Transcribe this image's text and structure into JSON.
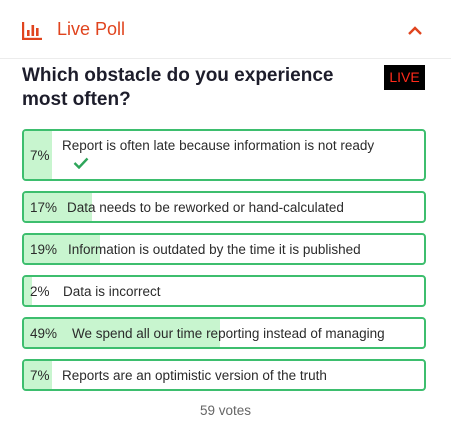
{
  "header": {
    "title": "Live Poll",
    "accent": "#e0441e"
  },
  "question": "Which obstacle do you experience most often?",
  "live_badge": "LIVE",
  "options": [
    {
      "percent": 7,
      "percent_label": "7%",
      "label": "Report is often late because information is not ready",
      "selected": true
    },
    {
      "percent": 17,
      "percent_label": "17%",
      "label": "Data needs to be reworked or hand-calculated",
      "selected": false
    },
    {
      "percent": 19,
      "percent_label": "19%",
      "label": "Information is outdated by the time it is published",
      "selected": false
    },
    {
      "percent": 2,
      "percent_label": "2%",
      "label": "Data is incorrect",
      "selected": false
    },
    {
      "percent": 49,
      "percent_label": "49%",
      "label": "We spend all our time reporting instead of managing",
      "selected": false
    },
    {
      "percent": 7,
      "percent_label": "7%",
      "label": "Reports are an optimistic version of the truth",
      "selected": false
    }
  ],
  "footer": {
    "votes": "59 votes"
  },
  "colors": {
    "option_border": "#3dbe6e",
    "option_fill": "#c8f5cf",
    "live_text": "#ff2a1a",
    "check": "#2ea55a"
  },
  "icons": {
    "header": "bar-chart-icon",
    "collapse": "chevron-up-icon",
    "selected": "checkmark-icon"
  }
}
